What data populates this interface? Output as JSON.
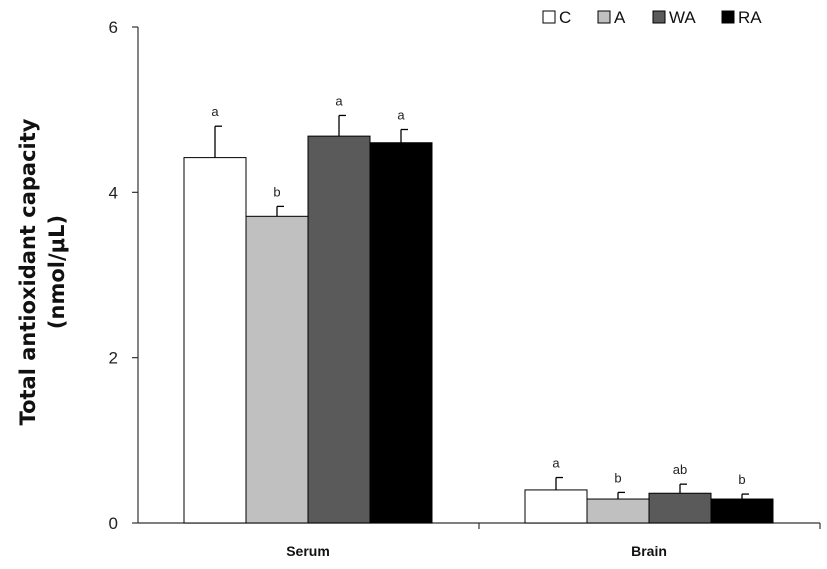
{
  "chart_data": {
    "type": "bar",
    "title": "",
    "xlabel": "",
    "ylabel_line1": "Total antioxidant capacity",
    "ylabel_line2": "(nmol/μL)",
    "ylim": [
      0,
      6
    ],
    "yticks": [
      0,
      2,
      4,
      6
    ],
    "categories": [
      "Serum",
      "Brain"
    ],
    "series": [
      {
        "name": "C",
        "color": "#ffffff",
        "values": [
          4.42,
          0.4
        ],
        "errors": [
          0.38,
          0.15
        ],
        "sig": [
          "a",
          "a"
        ]
      },
      {
        "name": "A",
        "color": "#c0c0c0",
        "values": [
          3.71,
          0.29
        ],
        "errors": [
          0.12,
          0.08
        ],
        "sig": [
          "b",
          "b"
        ]
      },
      {
        "name": "WA",
        "color": "#5a5a5a",
        "values": [
          4.68,
          0.36
        ],
        "errors": [
          0.25,
          0.11
        ],
        "sig": [
          "a",
          "ab"
        ]
      },
      {
        "name": "RA",
        "color": "#000000",
        "values": [
          4.6,
          0.29
        ],
        "errors": [
          0.16,
          0.06
        ],
        "sig": [
          "a",
          "b"
        ]
      }
    ],
    "legend_position": "top-right",
    "grid": false
  }
}
